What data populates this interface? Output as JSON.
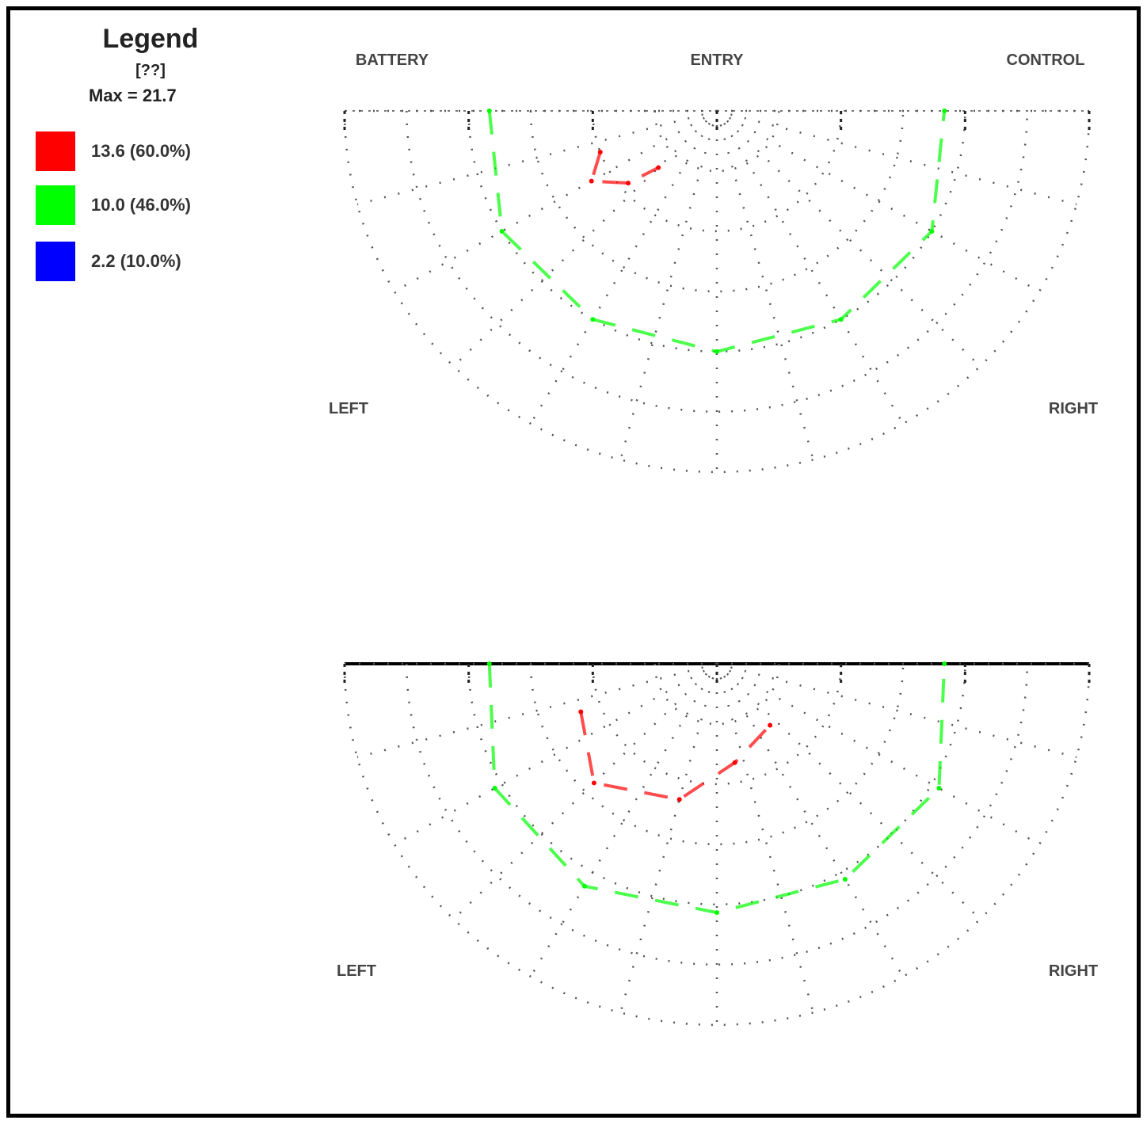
{
  "legend": {
    "title": "Legend",
    "unit": "[??]",
    "max_label": "Max = 21.7",
    "items": [
      {
        "label": "13.6 (60.0%)",
        "color": "#ff0000"
      },
      {
        "label": "10.0 (46.0%)",
        "color": "#00ff00"
      },
      {
        "label": "2.2 (10.0%)",
        "color": "#0000ff"
      }
    ]
  },
  "chart_data": [
    {
      "type": "line",
      "title": "",
      "corner_labels": [
        "BATTERY",
        "ENTRY",
        "CONTROL",
        "LEFT",
        "RIGHT"
      ],
      "top_label": "ENTRY",
      "xlim": [
        0,
        180
      ],
      "ylim": [
        0,
        90
      ],
      "series": [
        {
          "color": "#00ff00",
          "x": [
            0,
            30,
            60,
            90,
            120,
            150,
            180
          ],
          "y": [
            35,
            30,
            30,
            30,
            30,
            30,
            35
          ]
        },
        {
          "color": "#ff0000",
          "x": [
            20,
            30,
            40,
            45
          ],
          "y": [
            60,
            55,
            62,
            70
          ]
        }
      ]
    },
    {
      "type": "line",
      "title": "",
      "corner_labels": [
        "LEFT",
        "RIGHT"
      ],
      "top_label": "",
      "xlim": [
        0,
        180
      ],
      "ylim": [
        0,
        90
      ],
      "series": [
        {
          "color": "#00ff00",
          "x": [
            0,
            30,
            60,
            90,
            120,
            150,
            180
          ],
          "y": [
            35,
            28,
            26,
            28,
            28,
            28,
            35
          ]
        },
        {
          "color": "#ff0000",
          "x": [
            20,
            45,
            75,
            100,
            130
          ],
          "y": [
            55,
            48,
            55,
            65,
            70
          ]
        }
      ]
    }
  ]
}
